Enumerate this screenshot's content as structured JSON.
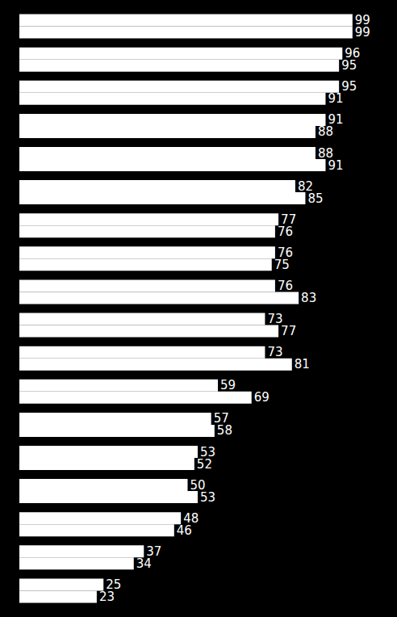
{
  "chart_data": {
    "type": "bar",
    "orientation": "horizontal",
    "categories": [
      null,
      null,
      null,
      null,
      null,
      null,
      null,
      null,
      null,
      null,
      null,
      null,
      null,
      null,
      null,
      null,
      null,
      null
    ],
    "series": [
      {
        "color": "#ffffff",
        "values": [
          99,
          96,
          95,
          91,
          88,
          82,
          77,
          76,
          76,
          73,
          73,
          59,
          57,
          53,
          50,
          48,
          37,
          25
        ]
      },
      {
        "color": "#ffffff",
        "values": [
          99,
          95,
          91,
          88,
          91,
          85,
          76,
          75,
          83,
          77,
          81,
          69,
          58,
          52,
          53,
          46,
          34,
          23
        ]
      }
    ],
    "xlim": [
      0,
      100
    ],
    "xticks": [
      0,
      100
    ],
    "tick_labels": false,
    "grid": false,
    "data_labels": true
  }
}
